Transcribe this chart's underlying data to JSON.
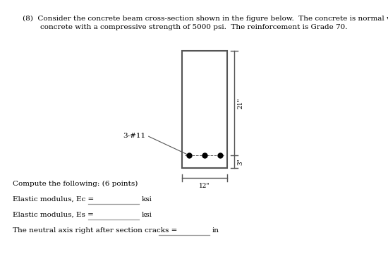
{
  "title_line1": "(8)  Consider the concrete beam cross-section shown in the figure below.  The concrete is normal weight",
  "title_line2": "concrete with a compressive strength of 5000 psi.  The reinforcement is Grade 70.",
  "beam_label_width": "12\"",
  "beam_label_height_top": "21\"",
  "beam_label_height_bottom": "3\"",
  "rebar_label": "3-#11",
  "compute_text": "Compute the following: (6 points)",
  "line1_label": "Elastic modulus, Ec = ",
  "line1_unit": "ksi",
  "line2_label": "Elastic modulus, Es = ",
  "line2_unit": "ksi",
  "line3_label": "The neutral axis right after section cracks = ",
  "line3_unit": "in",
  "bg_color": "#ffffff",
  "text_color": "#000000",
  "dim_color": "#555555",
  "rebar_color": "#000000",
  "underline_color": "#999999",
  "title_fontsize": 7.5,
  "body_fontsize": 7.5,
  "dim_fontsize": 6.5
}
